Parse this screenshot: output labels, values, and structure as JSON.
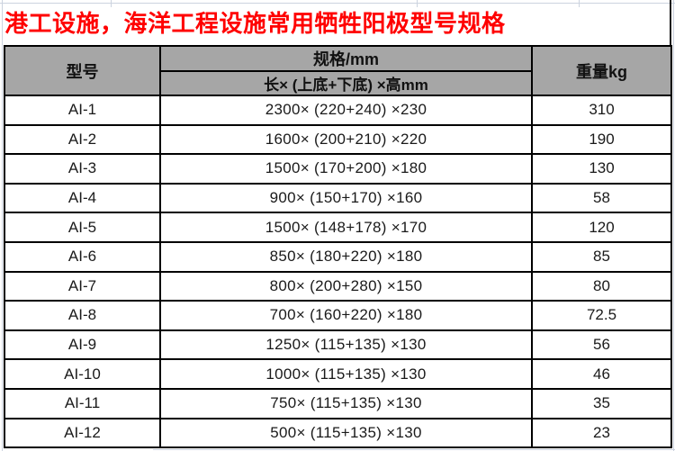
{
  "title": "港工设施，海洋工程设施常用牺牲阳极型号规格",
  "colors": {
    "title_red": "#ff0000",
    "header_bg": "#a6a6a6",
    "table_border": "#000000",
    "gridline_faint": "#ccd3df"
  },
  "table": {
    "headers": {
      "model": "型号",
      "spec_group": "规格/mm",
      "spec_sub": "长× (上底+下底) ×高mm",
      "weight": "重量kg"
    },
    "rows": [
      {
        "model": "AI-1",
        "spec": "2300× (220+240) ×230",
        "weight": "310"
      },
      {
        "model": "AI-2",
        "spec": "1600× (200+210) ×220",
        "weight": "190"
      },
      {
        "model": "AI-3",
        "spec": "1500× (170+200) ×180",
        "weight": "130"
      },
      {
        "model": "AI-4",
        "spec": "900× (150+170) ×160",
        "weight": "58"
      },
      {
        "model": "AI-5",
        "spec": "1500× (148+178) ×170",
        "weight": "120"
      },
      {
        "model": "AI-6",
        "spec": "850× (180+220) ×180",
        "weight": "85"
      },
      {
        "model": "AI-7",
        "spec": "800× (200+280) ×150",
        "weight": "80"
      },
      {
        "model": "AI-8",
        "spec": "700× (160+220) ×180",
        "weight": "72.5"
      },
      {
        "model": "AI-9",
        "spec": "1250× (115+135) ×130",
        "weight": "56"
      },
      {
        "model": "AI-10",
        "spec": "1000× (115+135) ×130",
        "weight": "46"
      },
      {
        "model": "AI-11",
        "spec": "750× (115+135) ×130",
        "weight": "35"
      },
      {
        "model": "AI-12",
        "spec": "500× (115+135) ×130",
        "weight": "23"
      }
    ]
  }
}
